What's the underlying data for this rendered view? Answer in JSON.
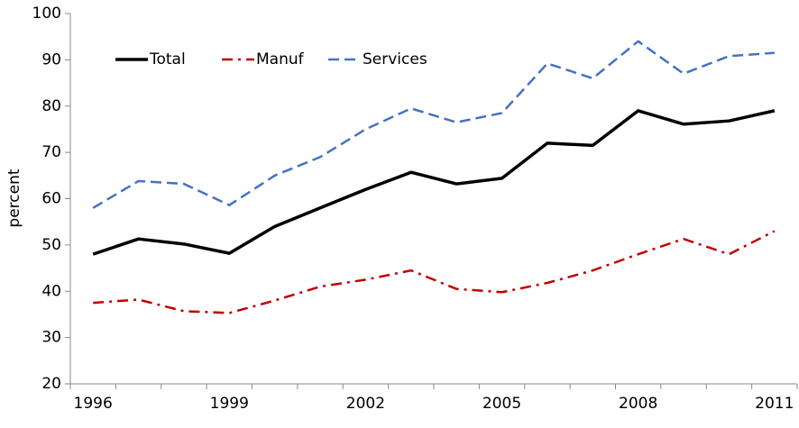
{
  "chart_data": {
    "type": "line",
    "y_label": "percent",
    "categories": [
      "1996",
      null,
      null,
      "1999",
      null,
      null,
      "2002",
      null,
      null,
      "2005",
      null,
      null,
      "2008",
      null,
      null,
      "2011"
    ],
    "series": [
      {
        "name": "Total",
        "color": "#000000",
        "dash": "solid",
        "values": [
          48,
          51.3,
          50.2,
          48.2,
          54,
          58,
          62,
          65.7,
          63.2,
          64.4,
          72,
          71.5,
          79,
          76.1,
          76.8,
          79
        ]
      },
      {
        "name": "Manuf",
        "color": "#c00000",
        "dash": "dashdot",
        "values": [
          37.5,
          38.2,
          35.7,
          35.3,
          38,
          41,
          42.5,
          44.5,
          40.5,
          39.8,
          41.8,
          44.5,
          48,
          51.3,
          48,
          53
        ]
      },
      {
        "name": "Services",
        "color": "#4472c4",
        "dash": "dashed",
        "values": [
          58,
          63.8,
          63.2,
          58.6,
          65,
          69,
          75,
          79.5,
          76.5,
          78.5,
          89.2,
          86,
          94,
          87,
          90.8,
          91.5
        ]
      }
    ],
    "ylim": [
      20,
      100
    ],
    "yticks": [
      20,
      30,
      40,
      50,
      60,
      70,
      80,
      90,
      100
    ],
    "grid": false,
    "legend": "top-left"
  }
}
